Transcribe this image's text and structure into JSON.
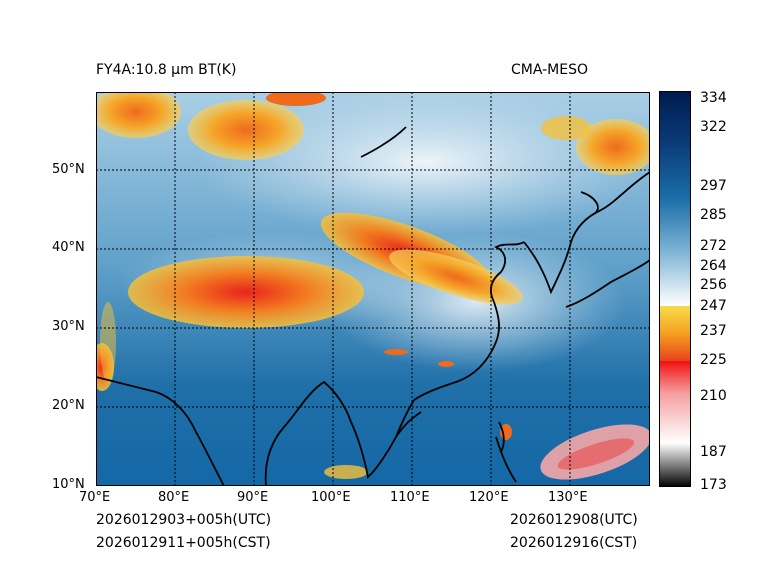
{
  "header": {
    "title_left": "FY4A:10.8 μm BT(K)",
    "title_right": "CMA-MESO"
  },
  "footer": {
    "init_utc": "2026012903+005h(UTC)",
    "init_cst": "2026012911+005h(CST)",
    "valid_utc": "2026012908(UTC)",
    "valid_cst": "2026012916(CST)"
  },
  "map": {
    "lon_labels": [
      "70°E",
      "80°E",
      "90°E",
      "100°E",
      "110°E",
      "120°E",
      "130°E"
    ],
    "lat_labels": [
      "50°N",
      "40°N",
      "30°N",
      "20°N",
      "10°N"
    ]
  },
  "colorbar": {
    "labels": [
      "334",
      "322",
      "297",
      "285",
      "272",
      "264",
      "256",
      "247",
      "237",
      "225",
      "210",
      "187",
      "173"
    ]
  }
}
